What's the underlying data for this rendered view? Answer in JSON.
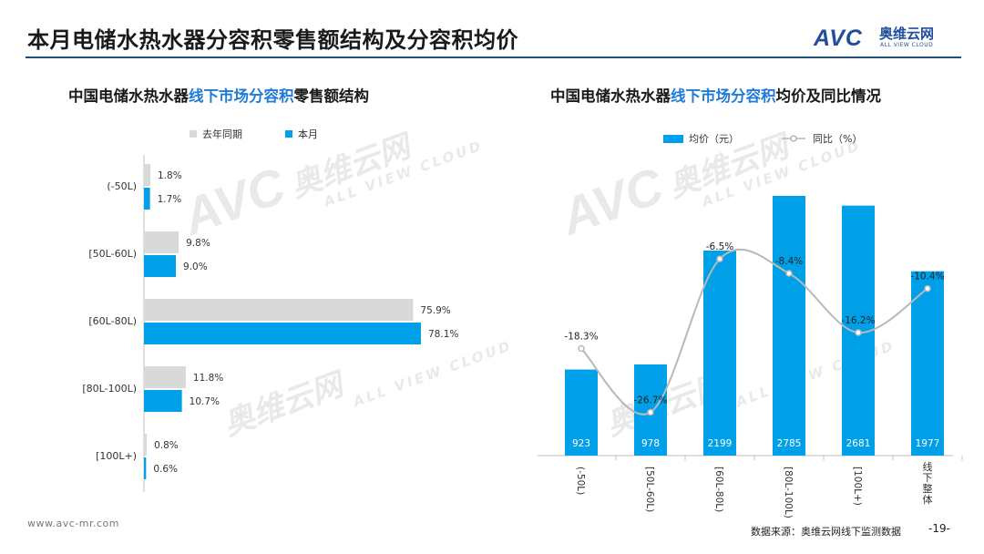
{
  "page": {
    "title": "本月电储水热水器分容积零售额结构及分容积均价",
    "footer_url": "www.avc-mr.com",
    "source": "数据来源：奥维云网线下监测数据",
    "page_number": "-19-"
  },
  "logo": {
    "mark": "AVC",
    "cn": "奥维云网",
    "en": "ALL VIEW CLOUD"
  },
  "watermark": {
    "mark": "AVC",
    "cn": "奥维云网",
    "en": "ALL VIEW CLOUD"
  },
  "left_title": {
    "pre": "中国电储水热水器",
    "highlight": "线下市场分容积",
    "post": "零售额结构"
  },
  "right_title": {
    "pre": "中国电储水热水器",
    "highlight": "线下市场分容积",
    "post": "均价及同比情况"
  },
  "colors": {
    "current": "#00a0e9",
    "previous": "#d9d9d9",
    "line": "#b8b8b8",
    "accent": "#1f7ad8",
    "navy": "#1f4e79"
  },
  "chart_data": [
    {
      "type": "bar",
      "orientation": "horizontal",
      "categories": [
        "(-50L)",
        "[50L-60L)",
        "[60L-80L)",
        "[80L-100L)",
        "[100L+)"
      ],
      "series": [
        {
          "name": "去年同期",
          "values": [
            1.8,
            9.8,
            75.9,
            11.8,
            0.8
          ],
          "labels": [
            "1.8%",
            "9.8%",
            "75.9%",
            "11.8%",
            "0.8%"
          ]
        },
        {
          "name": "本月",
          "values": [
            1.7,
            9.0,
            78.1,
            10.7,
            0.6
          ],
          "labels": [
            "1.7%",
            "9.0%",
            "78.1%",
            "10.7%",
            "0.6%"
          ]
        }
      ],
      "xlim": [
        0,
        78.1
      ],
      "legend": "top"
    },
    {
      "type": "bar+line",
      "categories": [
        "(-50L)",
        "[50L-60L)",
        "[60L-80L)",
        "[80L-100L)",
        "[100L+)",
        "线下整体"
      ],
      "series": [
        {
          "name": "均价（元）",
          "type": "bar",
          "values": [
            923,
            978,
            2199,
            2785,
            2681,
            1977
          ]
        },
        {
          "name": "同比（%）",
          "type": "line",
          "values": [
            -18.3,
            -26.7,
            -6.5,
            -8.4,
            -16.2,
            -10.4
          ],
          "labels": [
            "-18.3%",
            "-26.7%",
            "-6.5%",
            "-8.4%",
            "-16.2%",
            "-10.4%"
          ]
        }
      ],
      "legend": "top"
    }
  ]
}
